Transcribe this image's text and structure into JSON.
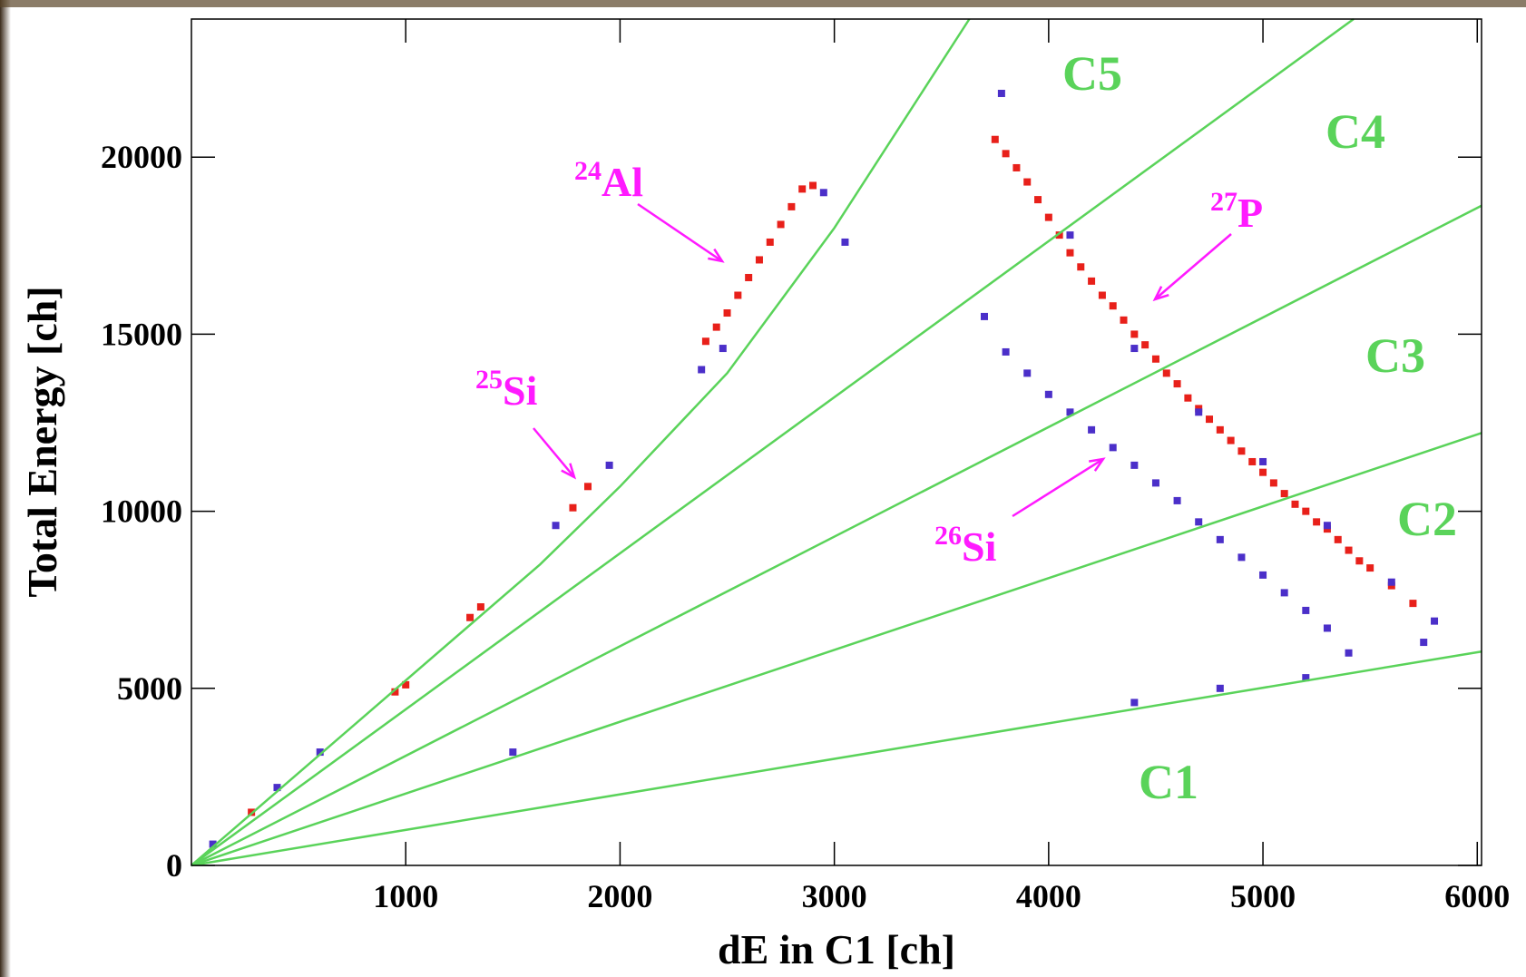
{
  "chart_data": {
    "type": "scatter",
    "x_label": "dE in C1 [ch]",
    "y_label": "Total Energy [ch]",
    "xlim": [
      0,
      6020
    ],
    "ylim": [
      0,
      23900
    ],
    "xticks": [
      1000,
      2000,
      3000,
      4000,
      5000,
      6000
    ],
    "yticks": [
      0,
      5000,
      10000,
      15000,
      20000
    ],
    "series": [
      {
        "color": "#e8201a",
        "x": [
          3750,
          3800,
          3850,
          3900,
          3950,
          4000,
          4050,
          4100,
          4150,
          4200,
          4250,
          4300,
          4350,
          4400,
          4450,
          4500,
          4550,
          4600,
          4650,
          4700,
          4750,
          4800,
          4850,
          4900,
          4950,
          5000,
          5050,
          5100,
          5150,
          5200,
          5250,
          5300,
          5350,
          5400,
          5450,
          5500,
          5600,
          5700,
          2400,
          2450,
          2500,
          2550,
          2600,
          2650,
          2700,
          2750,
          2800,
          2850,
          2900,
          1780,
          1850,
          1300,
          1350,
          950,
          1000,
          280
        ],
        "y": [
          20500,
          20100,
          19700,
          19300,
          18800,
          18300,
          17800,
          17300,
          16900,
          16500,
          16100,
          15800,
          15400,
          15000,
          14700,
          14300,
          13900,
          13600,
          13200,
          12900,
          12600,
          12300,
          12000,
          11700,
          11400,
          11100,
          10800,
          10500,
          10200,
          10000,
          9700,
          9500,
          9200,
          8900,
          8600,
          8400,
          7900,
          7400,
          14800,
          15200,
          15600,
          16100,
          16600,
          17100,
          17600,
          18100,
          18600,
          19100,
          19200,
          10100,
          10700,
          7000,
          7300,
          4900,
          5100,
          1500
        ]
      },
      {
        "color": "#4b2fc9",
        "x": [
          3700,
          3800,
          3900,
          4000,
          4100,
          4200,
          4300,
          4400,
          4500,
          4600,
          4700,
          4800,
          4900,
          5000,
          5100,
          5200,
          5300,
          5400,
          5800,
          5750,
          3780,
          4100,
          4400,
          4700,
          5000,
          5300,
          5600,
          2380,
          2480,
          2950,
          3050,
          1950,
          1700,
          600,
          400,
          100,
          1500,
          4400,
          4800,
          5200
        ],
        "y": [
          15500,
          14500,
          13900,
          13300,
          12800,
          12300,
          11800,
          11300,
          10800,
          10300,
          9700,
          9200,
          8700,
          8200,
          7700,
          7200,
          6700,
          6000,
          6900,
          6300,
          21800,
          17800,
          14600,
          12800,
          11400,
          9600,
          8000,
          14000,
          14600,
          19000,
          17600,
          11300,
          9600,
          3200,
          2200,
          600,
          3200,
          4600,
          5000,
          5300
        ]
      }
    ],
    "lines": [
      {
        "color": "#5ad35a",
        "x": [
          0,
          6020
        ],
        "y": [
          0,
          6040
        ]
      },
      {
        "color": "#5ad35a",
        "x": [
          0,
          6020
        ],
        "y": [
          0,
          12210
        ]
      },
      {
        "color": "#5ad35a",
        "x": [
          0,
          6020
        ],
        "y": [
          0,
          18630
        ]
      },
      {
        "color": "#5ad35a",
        "x": [
          0,
          5423
        ],
        "y": [
          0,
          23900
        ]
      },
      {
        "color": "#5ad35a",
        "x": [
          0,
          1627,
          2000,
          2500,
          3000,
          3630
        ],
        "y": [
          0,
          8500,
          10700,
          13900,
          18000,
          23900
        ]
      }
    ],
    "region_color": "#5ad35a",
    "regions": [
      "C1",
      "C2",
      "C3",
      "C4",
      "C5"
    ],
    "annotation_color": "#ff1aff",
    "annotations": [
      {
        "mass": "24",
        "symbol": "Al"
      },
      {
        "mass": "25",
        "symbol": "Si"
      },
      {
        "mass": "27",
        "symbol": "P"
      },
      {
        "mass": "26",
        "symbol": "Si"
      }
    ]
  }
}
